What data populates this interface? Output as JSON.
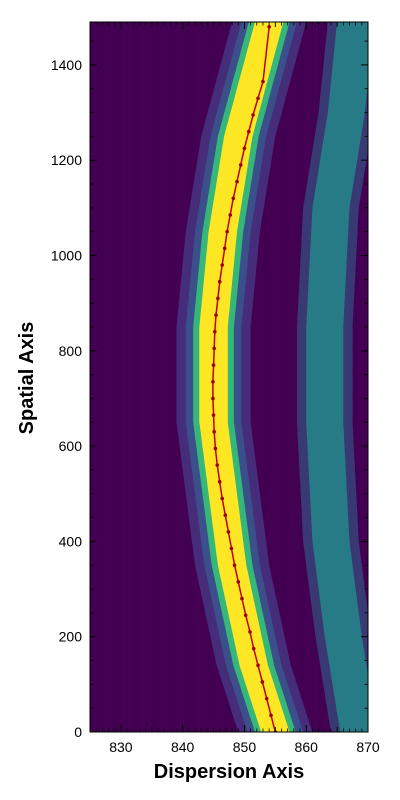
{
  "chart_data": {
    "type": "heatmap",
    "xlabel": "Dispersion Axis",
    "ylabel": "Spatial Axis",
    "xlim": [
      825,
      870
    ],
    "ylim": [
      0,
      1490
    ],
    "xticks": [
      830,
      840,
      850,
      860,
      870
    ],
    "yticks": [
      0,
      200,
      400,
      600,
      800,
      1000,
      1200,
      1400
    ],
    "xtick_labels": [
      "830",
      "840",
      "850",
      "860",
      "870"
    ],
    "ytick_labels": [
      "0",
      "200",
      "400",
      "600",
      "800",
      "1000",
      "1200",
      "1400"
    ],
    "colormap": "viridis",
    "colors": {
      "background": "#440154",
      "halo": "#3b528b",
      "ring": "#21918c",
      "core": "#fde725",
      "trace": "#c00000"
    },
    "grid": false,
    "bands": [
      {
        "name": "bright arc",
        "center_points": [
          [
            855,
            0
          ],
          [
            851.5,
            140
          ],
          [
            848,
            350
          ],
          [
            845,
            650
          ],
          [
            845,
            850
          ],
          [
            846.5,
            1050
          ],
          [
            849,
            1250
          ],
          [
            854,
            1490
          ]
        ],
        "core_halfwidth": 2,
        "halo_halfwidth": 6
      },
      {
        "name": "faint arc",
        "center_points": [
          [
            868.5,
            0
          ],
          [
            866,
            200
          ],
          [
            864,
            400
          ],
          [
            863,
            650
          ],
          [
            863,
            850
          ],
          [
            864,
            1100
          ],
          [
            866.5,
            1300
          ],
          [
            868,
            1490
          ]
        ],
        "halfwidth": 3
      }
    ],
    "trace": {
      "x": [
        855.0,
        854.3,
        853.6,
        852.9,
        852.2,
        851.5,
        850.9,
        850.2,
        849.6,
        849.0,
        848.4,
        847.9,
        847.4,
        846.9,
        846.4,
        846.0,
        845.6,
        845.3,
        845.1,
        845.0,
        844.9,
        844.9,
        845.0,
        845.1,
        845.2,
        845.4,
        845.7,
        846.0,
        846.4,
        846.8,
        847.2,
        847.7,
        848.2,
        848.8,
        849.4,
        850.0,
        850.7,
        851.4,
        852.2,
        853.0,
        854.0
      ],
      "y": [
        0,
        35,
        70,
        105,
        140,
        175,
        210,
        245,
        280,
        315,
        350,
        385,
        420,
        455,
        490,
        525,
        560,
        595,
        630,
        665,
        700,
        735,
        770,
        805,
        840,
        875,
        910,
        945,
        980,
        1015,
        1050,
        1085,
        1120,
        1155,
        1190,
        1225,
        1260,
        1295,
        1330,
        1365,
        1480
      ]
    }
  }
}
